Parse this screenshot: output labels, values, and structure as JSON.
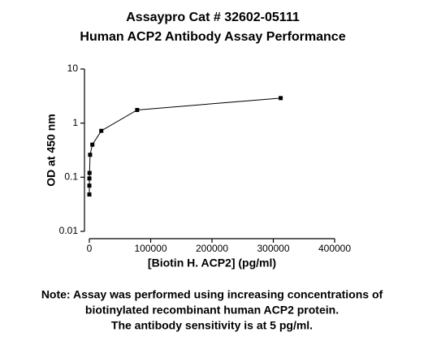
{
  "chart_data": {
    "type": "line",
    "title": [
      "Assaypro Cat # 32602-05111",
      "Human ACP2 Antibody Assay Performance"
    ],
    "x_label": "[Biotin H. ACP2] (pg/ml)",
    "y_label": "OD at 450 nm",
    "x": [
      0,
      20,
      80,
      300,
      1200,
      4900,
      19500,
      78000,
      312000
    ],
    "series": [
      {
        "color": "#000000",
        "values": [
          0.048,
          0.07,
          0.095,
          0.12,
          0.26,
          0.4,
          0.72,
          1.75,
          2.9
        ]
      }
    ],
    "xlim": [
      0,
      400000
    ],
    "xticks": [
      0,
      100000,
      200000,
      300000,
      400000
    ],
    "ylim": [
      0.01,
      10
    ],
    "yticks": [
      0.01,
      0.1,
      1,
      10
    ],
    "y_scale": "log",
    "note": [
      "Note: Assay was performed using increasing concentrations of",
      "biotinylated recombinant human ACP2 protein.",
      "The antibody sensitivity is at 5 pg/ml."
    ]
  }
}
